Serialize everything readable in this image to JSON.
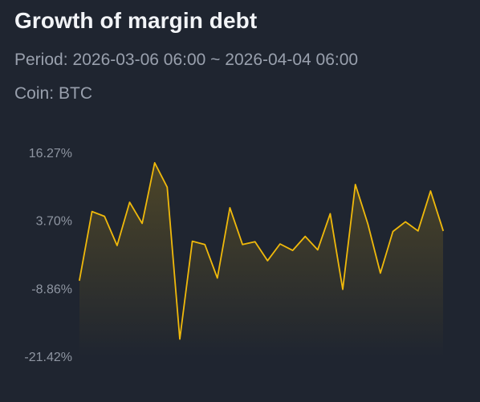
{
  "header": {
    "title": "Growth of margin debt",
    "period_label": "Period:",
    "period_value": "2026-03-06 06:00 ~ 2026-04-04 06:00",
    "coin_label": "Coin:",
    "coin_value": "BTC"
  },
  "colors": {
    "background": "#1f2530",
    "line": "#f0b90b"
  },
  "chart_data": {
    "type": "area",
    "title": "Growth of margin debt",
    "xlabel": "",
    "ylabel": "",
    "x_start": "2026-03-06 06:00",
    "x_end": "2026-04-04 06:00",
    "ylim": [
      -21.42,
      16.27
    ],
    "y_ticks": [
      "16.27%",
      "3.70%",
      "-8.86%",
      "-21.42%"
    ],
    "y_tick_values": [
      16.27,
      3.7,
      -8.86,
      -21.42
    ],
    "grid": false,
    "legend": "none",
    "series": [
      {
        "values": [
          -7.2,
          5.5,
          4.6,
          -0.8,
          7.2,
          3.3,
          14.5,
          10.0,
          -18.1,
          0.0,
          -0.6,
          -6.8,
          6.2,
          -0.6,
          -0.1,
          -3.6,
          -0.5,
          -1.7,
          0.9,
          -1.6,
          5.1,
          -8.9,
          10.5,
          3.2,
          -5.9,
          1.8,
          3.6,
          1.9,
          9.3,
          2.0
        ]
      }
    ]
  }
}
